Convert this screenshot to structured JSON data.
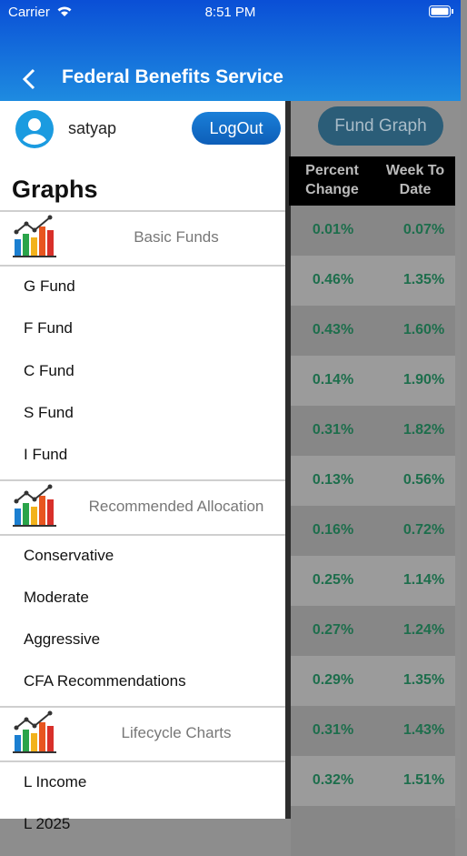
{
  "status_bar": {
    "carrier": "Carrier",
    "time": "8:51 PM"
  },
  "header": {
    "title": "Federal Benefits Service"
  },
  "drawer": {
    "user": "satyap",
    "logout": "LogOut",
    "heading": "Graphs",
    "sections": [
      {
        "title": "Basic Funds",
        "items": [
          "G Fund",
          "F Fund",
          "C Fund",
          "S Fund",
          "I Fund"
        ]
      },
      {
        "title": "Recommended Allocation",
        "items": [
          "Conservative",
          "Moderate",
          "Aggressive",
          "CFA Recommendations"
        ]
      },
      {
        "title": "Lifecycle Charts",
        "items": [
          "L Income",
          "L 2025"
        ]
      }
    ]
  },
  "table": {
    "button": "Fund Graph",
    "columns": [
      "Percent Change",
      "Week To Date"
    ],
    "rows": [
      [
        "0.01%",
        "0.07%"
      ],
      [
        "0.46%",
        "1.35%"
      ],
      [
        "0.43%",
        "1.60%"
      ],
      [
        "0.14%",
        "1.90%"
      ],
      [
        "0.31%",
        "1.82%"
      ],
      [
        "0.13%",
        "0.56%"
      ],
      [
        "0.16%",
        "0.72%"
      ],
      [
        "0.25%",
        "1.14%"
      ],
      [
        "0.27%",
        "1.24%"
      ],
      [
        "0.29%",
        "1.35%"
      ],
      [
        "0.31%",
        "1.43%"
      ],
      [
        "0.32%",
        "1.51%"
      ]
    ]
  }
}
